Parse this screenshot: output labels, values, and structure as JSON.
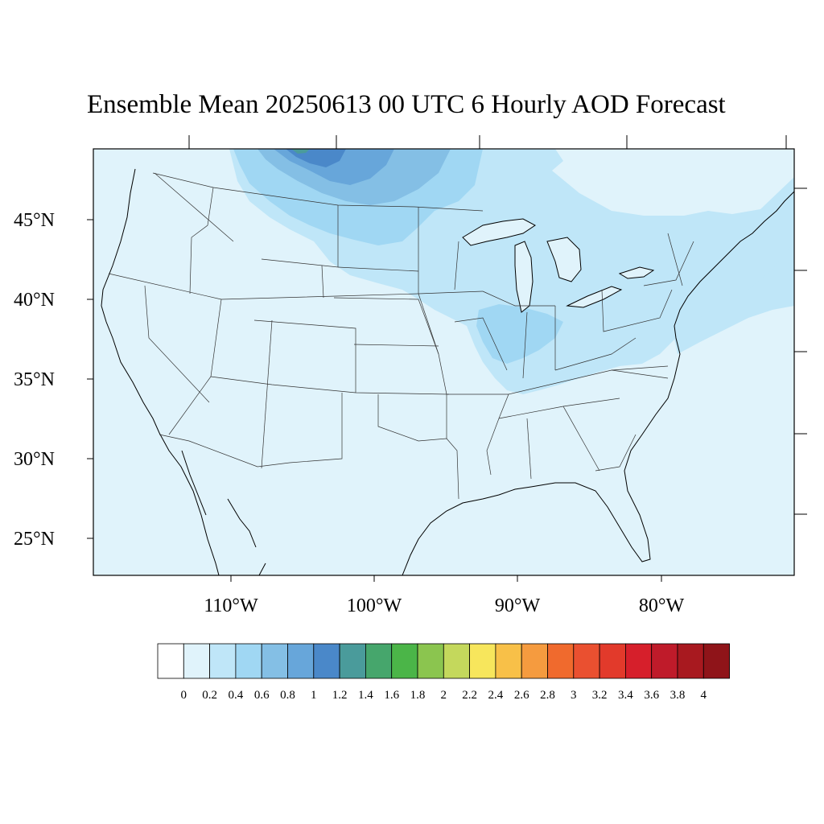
{
  "title": "Ensemble Mean 20250613 00 UTC 6 Hourly AOD Forecast",
  "map": {
    "lat_labels": [
      "45°N",
      "40°N",
      "35°N",
      "30°N",
      "25°N"
    ],
    "lon_labels": [
      "110°W",
      "100°W",
      "90°W",
      "80°W"
    ],
    "background_color": "#e0f3fb",
    "outline_color": "#000000"
  },
  "colorbar": {
    "tick_labels": [
      "0",
      "0.2",
      "0.4",
      "0.6",
      "0.8",
      "1",
      "1.2",
      "1.4",
      "1.6",
      "1.8",
      "2",
      "2.2",
      "2.4",
      "2.6",
      "2.8",
      "3",
      "3.2",
      "3.4",
      "3.6",
      "3.8",
      "4"
    ],
    "colors": [
      "#ffffff",
      "#e0f3fb",
      "#bfe6f8",
      "#a0d7f3",
      "#84bfe5",
      "#67a6da",
      "#4a88c9",
      "#4a9b9b",
      "#46a66c",
      "#4bb548",
      "#8bc54f",
      "#c4d85c",
      "#f7e65c",
      "#f8c048",
      "#f59b3f",
      "#f06a2d",
      "#ea5030",
      "#e23a2b",
      "#d61f2b",
      "#bf1b2a",
      "#a8191f",
      "#8f1419"
    ]
  },
  "chart_data": {
    "type": "heatmap",
    "title": "Ensemble Mean 20250613 00 UTC 6 Hourly AOD Forecast",
    "variable": "AOD",
    "lat_range": [
      22.6,
      49.4
    ],
    "lon_range": [
      -119,
      -71
    ],
    "color_levels": [
      0,
      0.2,
      0.4,
      0.6,
      0.8,
      1,
      1.2,
      1.4,
      1.6,
      1.8,
      2,
      2.2,
      2.4,
      2.6,
      2.8,
      3,
      3.2,
      3.4,
      3.6,
      3.8,
      4
    ],
    "regions": [
      {
        "area": "most of the domain",
        "aod_range": [
          0.0,
          0.2
        ]
      },
      {
        "area": "northern plains / Montana–North Dakota / Canada border",
        "aod_range": [
          0.4,
          1.0
        ]
      },
      {
        "area": "Saskatchewan–Montana border (peak)",
        "aod_range": [
          1.0,
          1.4
        ]
      },
      {
        "area": "Great Lakes / Midwest / Ohio Valley",
        "aod_range": [
          0.2,
          0.6
        ]
      },
      {
        "area": "Mid-Atlantic coast and western Atlantic",
        "aod_range": [
          0.2,
          0.4
        ]
      }
    ]
  }
}
